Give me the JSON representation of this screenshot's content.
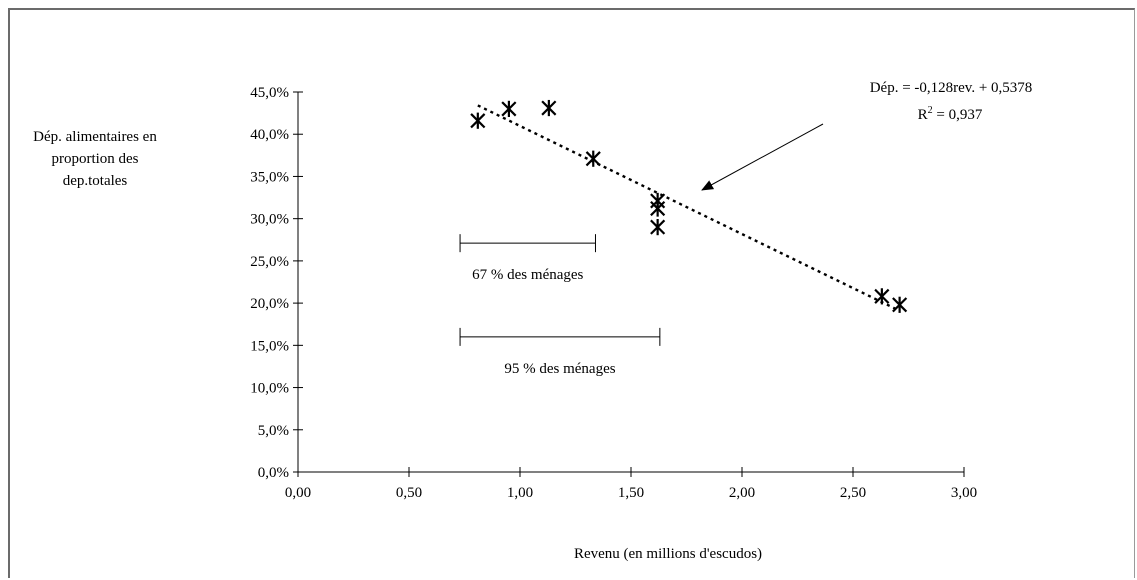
{
  "chart_data": {
    "type": "scatter",
    "title": "",
    "xlabel": "Revenu (en millions d'escudos)",
    "ylabel_lines": [
      "Dép. alimentaires en",
      "proportion des",
      "dep.totales"
    ],
    "xlim": [
      0,
      3
    ],
    "ylim": [
      0,
      0.45
    ],
    "x_ticks": [
      {
        "value": 0.0,
        "label": "0,00"
      },
      {
        "value": 0.5,
        "label": "0,50"
      },
      {
        "value": 1.0,
        "label": "1,00"
      },
      {
        "value": 1.5,
        "label": "1,50"
      },
      {
        "value": 2.0,
        "label": "2,00"
      },
      {
        "value": 2.5,
        "label": "2,50"
      },
      {
        "value": 3.0,
        "label": "3,00"
      }
    ],
    "y_ticks": [
      {
        "value": 0.0,
        "label": "0,0%"
      },
      {
        "value": 0.05,
        "label": "5,0%"
      },
      {
        "value": 0.1,
        "label": "10,0%"
      },
      {
        "value": 0.15,
        "label": "15,0%"
      },
      {
        "value": 0.2,
        "label": "20,0%"
      },
      {
        "value": 0.25,
        "label": "25,0%"
      },
      {
        "value": 0.3,
        "label": "30,0%"
      },
      {
        "value": 0.35,
        "label": "35,0%"
      },
      {
        "value": 0.4,
        "label": "40,0%"
      },
      {
        "value": 0.45,
        "label": "45,0%"
      }
    ],
    "points": [
      {
        "x": 0.81,
        "y": 0.416
      },
      {
        "x": 0.95,
        "y": 0.43
      },
      {
        "x": 1.13,
        "y": 0.431
      },
      {
        "x": 1.33,
        "y": 0.371
      },
      {
        "x": 1.62,
        "y": 0.321
      },
      {
        "x": 1.62,
        "y": 0.312
      },
      {
        "x": 1.62,
        "y": 0.29
      },
      {
        "x": 2.63,
        "y": 0.208
      },
      {
        "x": 2.71,
        "y": 0.198
      }
    ],
    "trendline": {
      "slope": -0.128,
      "intercept": 0.5378,
      "x_range": [
        0.81,
        2.71
      ],
      "style": "dotted",
      "equation_label": "Dép. = -0,128rev. + 0,5378",
      "r2_label": "R",
      "r2_sup": "2",
      "r2_value": " = 0,937"
    },
    "ranges": [
      {
        "x_start": 0.73,
        "x_end": 1.34,
        "y": 0.271,
        "label": "67 % des ménages"
      },
      {
        "x_start": 0.73,
        "x_end": 1.63,
        "y": 0.16,
        "label": "95 % des ménages"
      }
    ]
  }
}
